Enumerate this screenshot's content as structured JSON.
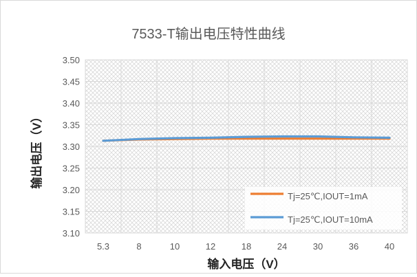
{
  "chart_data": {
    "type": "line",
    "title": "7533-T输出电压特性曲线",
    "xlabel": "输入电压（V）",
    "ylabel": "输出电压（V）",
    "categories": [
      "5.3",
      "8",
      "10",
      "12",
      "18",
      "24",
      "30",
      "36",
      "40"
    ],
    "ylim": [
      3.1,
      3.5
    ],
    "yticks": [
      "3.10",
      "3.15",
      "3.20",
      "3.25",
      "3.30",
      "3.35",
      "3.40",
      "3.45",
      "3.50"
    ],
    "grid": true,
    "legend_position": "bottom-right inside plot",
    "series": [
      {
        "name": "Tj=25℃,IOUT=1mA",
        "color": "#ED7D31",
        "values": [
          3.313,
          3.316,
          3.317,
          3.318,
          3.318,
          3.318,
          3.318,
          3.318,
          3.318
        ]
      },
      {
        "name": "Tj=25℃,IOUT=10mA",
        "color": "#5B9BD5",
        "values": [
          3.313,
          3.317,
          3.319,
          3.32,
          3.322,
          3.323,
          3.323,
          3.321,
          3.32
        ]
      }
    ]
  }
}
